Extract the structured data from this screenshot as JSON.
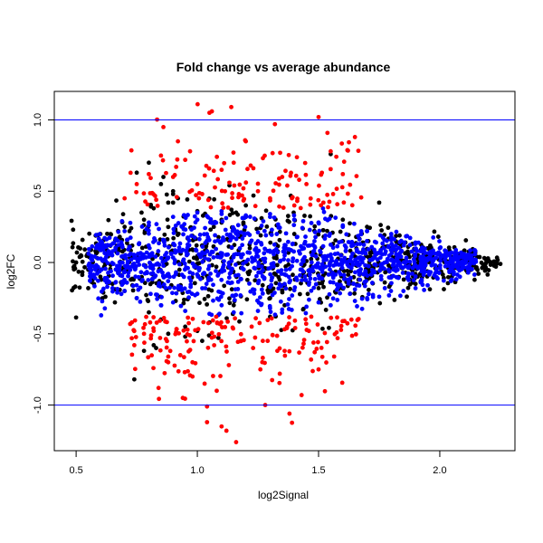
{
  "chart_data": {
    "type": "scatter",
    "title": "Fold change vs average abundance",
    "xlabel": "log2Signal",
    "ylabel": "log2FC",
    "xlim": [
      0.41,
      2.31
    ],
    "ylim": [
      -1.32,
      1.2
    ],
    "x_ticks": [
      0.5,
      1.0,
      1.5,
      2.0
    ],
    "x_tick_labels": [
      "0.5",
      "1.0",
      "1.5",
      "2.0"
    ],
    "y_ticks": [
      -1.0,
      -0.5,
      0.0,
      0.5,
      1.0
    ],
    "y_tick_labels": [
      "-1.0",
      "-0.5",
      "0.0",
      "0.5",
      "1.0"
    ],
    "grid": false,
    "legend": "none",
    "reference_lines": [
      {
        "y": 1.0,
        "color": "#0000ff"
      },
      {
        "y": -1.0,
        "color": "#0000ff"
      }
    ],
    "series": [
      {
        "color": "#000000",
        "x": [
          0.5,
          0.52,
          0.55,
          0.58,
          0.6,
          0.62,
          0.65,
          0.68,
          0.7,
          0.72,
          0.75,
          0.78,
          0.8,
          0.82,
          0.85,
          0.88,
          0.9,
          0.95,
          1.0,
          1.05,
          1.1,
          1.15,
          1.2,
          1.3,
          1.4,
          1.5,
          1.6,
          1.7,
          1.8,
          1.9,
          2.0,
          2.05,
          2.1,
          2.15,
          2.2,
          2.25,
          0.75,
          0.8,
          0.85,
          0.9,
          0.95,
          0.78,
          0.82,
          0.88,
          1.2,
          1.3,
          1.55,
          1.6,
          0.7,
          0.9,
          1.0,
          1.1,
          1.95,
          2.05,
          2.12,
          0.55,
          0.6,
          0.66,
          0.74,
          0.86,
          0.92,
          1.02,
          1.16,
          1.36,
          1.7,
          1.9,
          1.75,
          0.77,
          0.83
        ],
        "y": [
          0.0,
          0.05,
          -0.05,
          0.08,
          -0.1,
          0.12,
          -0.15,
          0.18,
          -0.2,
          0.22,
          -0.25,
          0.3,
          -0.35,
          0.38,
          -0.4,
          0.42,
          0.5,
          -0.45,
          0.36,
          -0.42,
          0.28,
          -0.3,
          0.32,
          -0.25,
          0.2,
          -0.18,
          0.15,
          -0.12,
          0.1,
          -0.08,
          0.06,
          -0.05,
          0.08,
          -0.04,
          0.02,
          -0.01,
          0.63,
          0.7,
          0.55,
          0.48,
          -0.52,
          -0.62,
          -0.58,
          -0.5,
          0.4,
          -0.38,
          0.76,
          0.3,
          0.25,
          0.42,
          -0.48,
          0.3,
          0.1,
          -0.1,
          0.06,
          -0.18,
          0.2,
          -0.28,
          -0.82,
          0.6,
          0.45,
          -0.55,
          0.35,
          -0.3,
          0.25,
          -0.15,
          0.42,
          0.35,
          -0.6
        ],
        "generated_cloud": {
          "count": 700,
          "x_range": [
            0.48,
            2.24
          ],
          "spread": 0.42
        }
      },
      {
        "color": "#0000ff",
        "x": [
          0.6,
          0.65,
          0.7,
          0.75,
          0.8,
          0.85,
          0.9,
          0.95,
          1.0,
          1.05,
          1.1,
          1.15,
          1.2,
          1.25,
          1.3,
          1.35,
          1.4,
          1.45,
          1.5,
          1.55,
          1.6,
          1.65,
          1.7,
          1.75,
          1.8,
          1.85,
          1.9,
          1.95,
          2.0,
          2.05,
          2.1,
          0.7,
          0.8,
          0.9,
          1.0,
          1.1,
          1.2,
          1.3,
          1.4,
          1.5,
          1.6,
          1.7,
          1.8,
          1.9,
          1.1,
          1.3,
          1.5,
          1.7
        ],
        "y": [
          0.15,
          -0.18,
          0.22,
          -0.25,
          0.28,
          -0.3,
          0.32,
          -0.34,
          0.35,
          -0.36,
          0.34,
          -0.35,
          0.33,
          -0.34,
          0.32,
          -0.33,
          0.3,
          -0.31,
          0.28,
          -0.3,
          0.25,
          -0.27,
          0.22,
          -0.24,
          0.18,
          -0.2,
          0.14,
          -0.16,
          0.1,
          -0.12,
          0.06,
          -0.2,
          0.26,
          -0.28,
          0.3,
          -0.3,
          0.32,
          -0.32,
          0.3,
          -0.28,
          0.26,
          -0.25,
          0.2,
          -0.18,
          0.36,
          0.34,
          0.28,
          0.22
        ],
        "generated_cloud": {
          "count": 1200,
          "x_range": [
            0.55,
            2.15
          ],
          "spread": 0.36
        }
      },
      {
        "color": "#ff0000",
        "x": [
          0.7,
          0.73,
          0.75,
          0.78,
          0.8,
          0.82,
          0.85,
          0.88,
          0.9,
          0.93,
          0.95,
          0.98,
          1.0,
          1.03,
          1.05,
          1.08,
          1.1,
          1.12,
          1.15,
          1.18,
          1.2,
          1.23,
          1.25,
          1.28,
          1.3,
          1.33,
          1.35,
          1.38,
          1.4,
          1.43,
          1.45,
          1.5,
          1.55,
          1.6,
          1.65,
          0.86,
          0.92,
          0.97,
          1.06,
          1.14,
          1.22,
          1.32,
          1.42,
          0.74,
          0.84,
          0.94,
          1.04,
          1.16,
          1.26,
          1.36,
          1.46,
          1.04,
          1.1,
          1.13,
          1.27,
          1.34,
          1.37,
          1.5,
          1.52,
          1.56,
          0.88,
          0.98,
          1.02,
          1.07,
          1.19,
          1.29,
          1.39,
          1.47
        ],
        "y": [
          0.45,
          -0.42,
          0.55,
          -0.5,
          0.62,
          -0.48,
          0.75,
          -0.7,
          0.6,
          -0.65,
          0.72,
          -0.8,
          0.55,
          -0.85,
          1.05,
          -0.9,
          0.65,
          -1.18,
          0.7,
          -0.55,
          0.85,
          -0.6,
          0.5,
          -1.0,
          0.45,
          -0.62,
          0.6,
          -1.06,
          0.4,
          -0.93,
          0.55,
          1.02,
          0.78,
          0.62,
          0.88,
          0.95,
          0.85,
          0.78,
          1.06,
          1.09,
          0.68,
          0.97,
          0.58,
          -0.58,
          -0.88,
          -0.95,
          -1.12,
          -1.26,
          -0.75,
          -0.62,
          -0.48,
          -1.01,
          -1.15,
          -0.72,
          -0.55,
          -0.78,
          -0.45,
          -0.75,
          0.42,
          0.48,
          -0.66,
          -0.7,
          0.48,
          -0.52,
          0.52,
          -0.55,
          0.45,
          -0.38
        ],
        "generated_cloud": {
          "count": 260,
          "x_range": [
            0.72,
            1.68
          ],
          "spread": 0.72
        }
      }
    ]
  }
}
